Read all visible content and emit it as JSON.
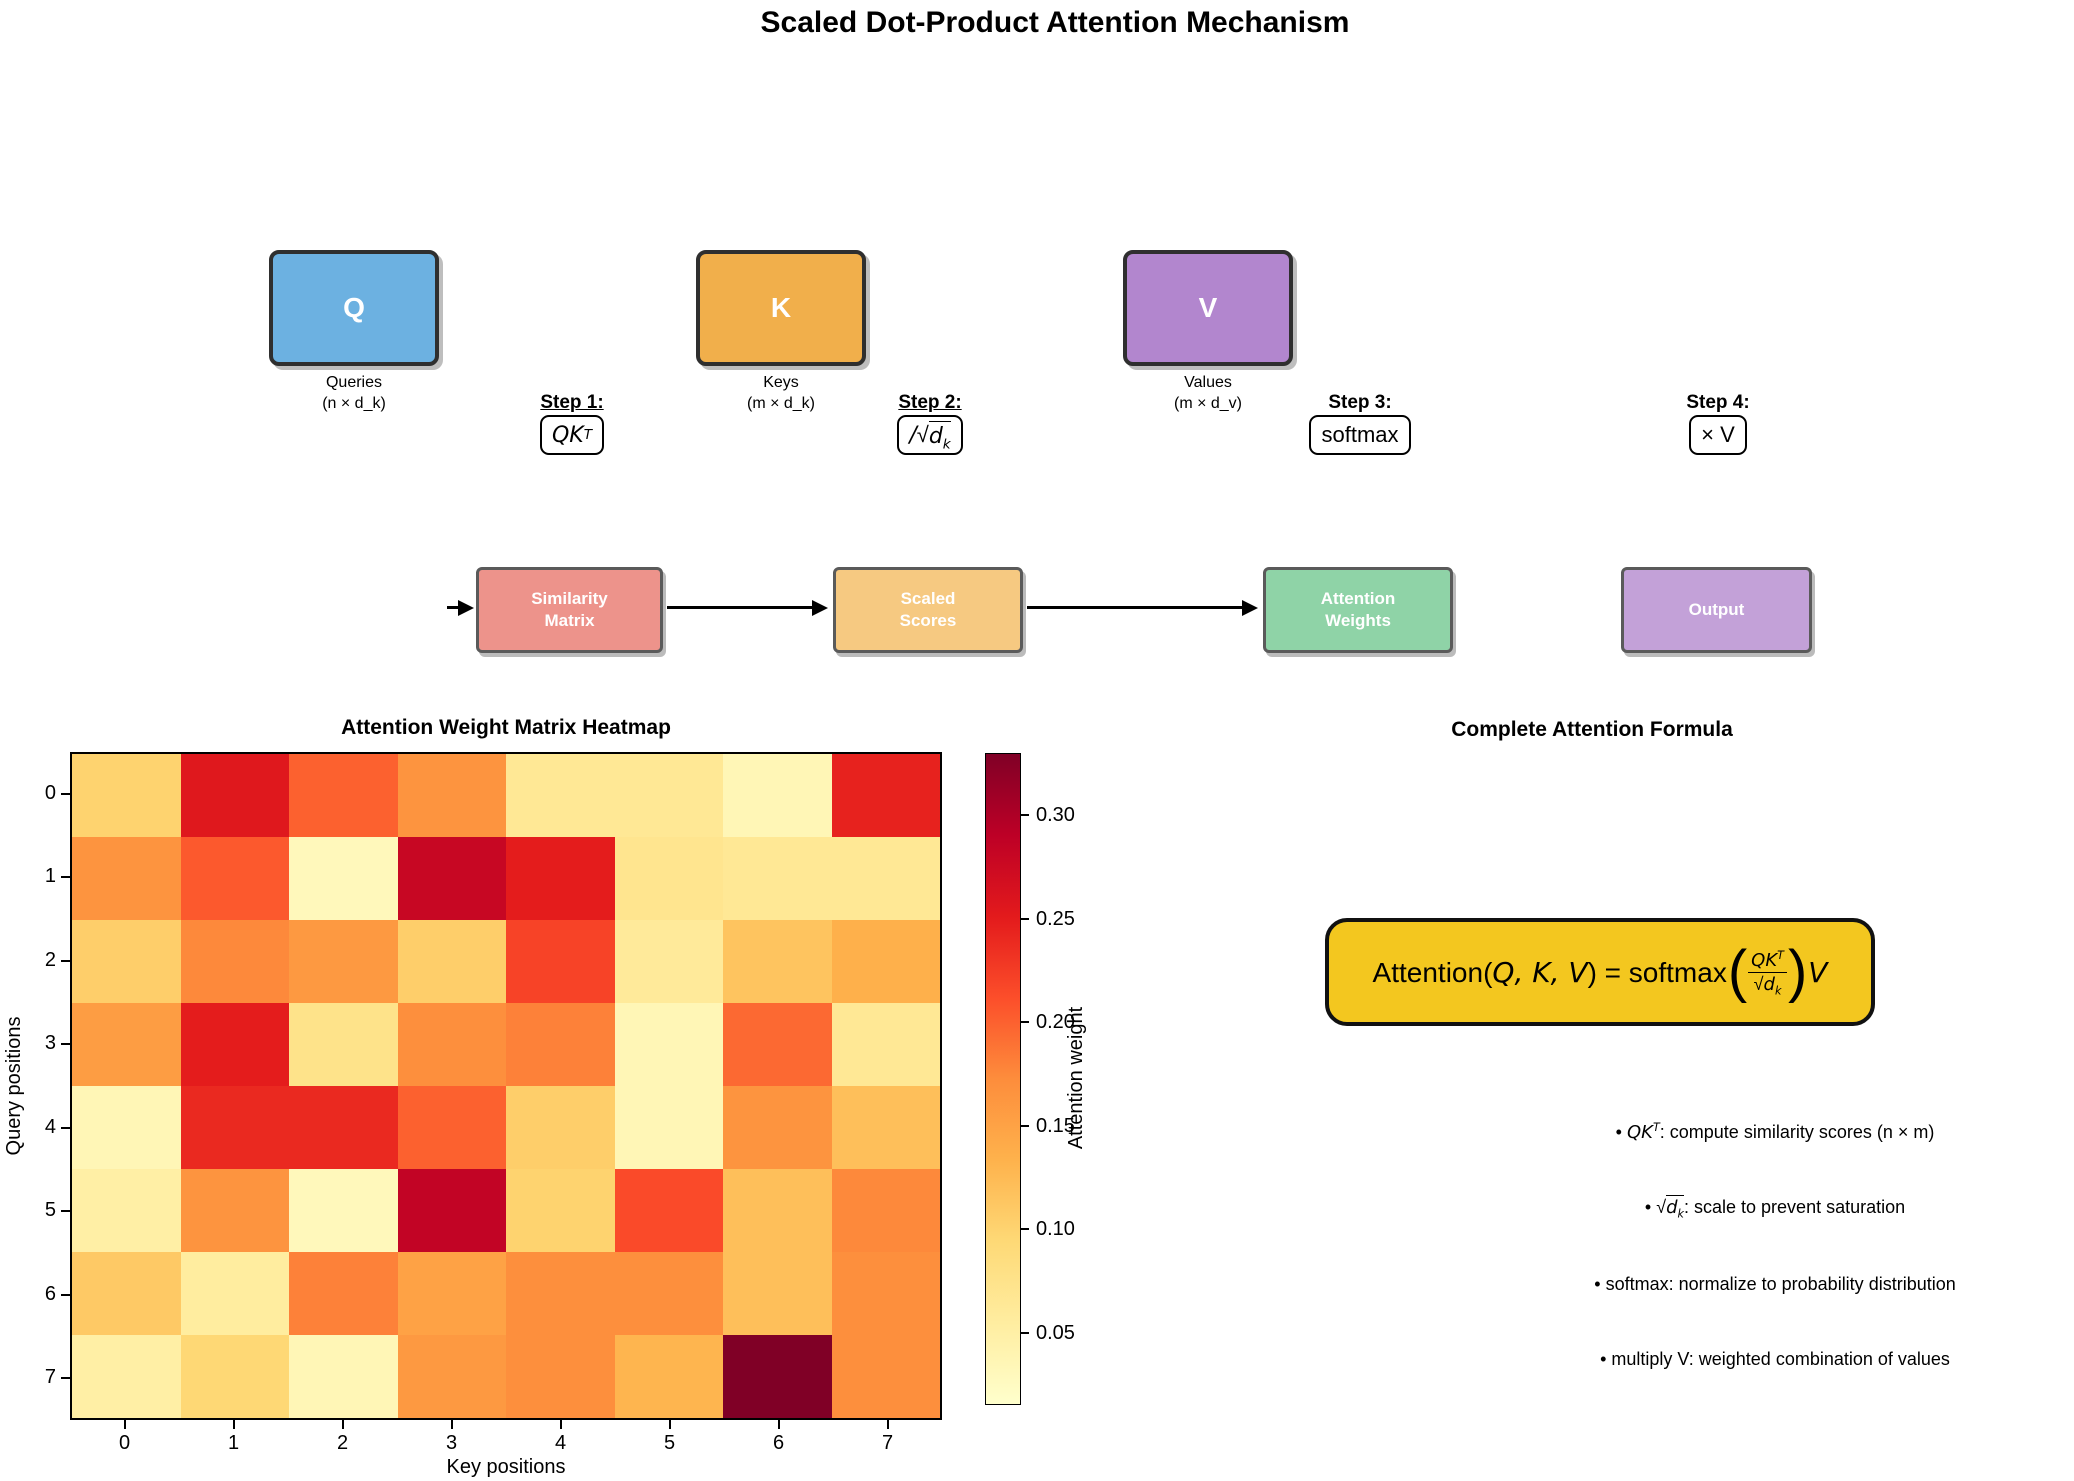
{
  "title": "Scaled Dot-Product Attention Mechanism",
  "matrices": [
    {
      "letter": "Q",
      "caption_line1": "Queries",
      "caption_line2": "(n × d_k)",
      "color": "#6cb1e1"
    },
    {
      "letter": "K",
      "caption_line1": "Keys",
      "caption_line2": "(m × d_k)",
      "color": "#f1af4b"
    },
    {
      "letter": "V",
      "caption_line1": "Values",
      "caption_line2": "(m × d_v)",
      "color": "#b286ce"
    }
  ],
  "steps": [
    {
      "label": "Step 1:",
      "math_main": "QK",
      "math_sup": "T"
    },
    {
      "label": "Step 2:",
      "prefix": "/",
      "radical": "√",
      "base": "d",
      "sub": "k"
    },
    {
      "label": "Step 3:",
      "plain": "softmax"
    },
    {
      "label": "Step 4:",
      "plain": "× V"
    }
  ],
  "flow_boxes": [
    {
      "line1": "Similarity",
      "line2": "Matrix",
      "color": "#ed938b"
    },
    {
      "line1": "Scaled",
      "line2": "Scores",
      "color": "#f6c981"
    },
    {
      "line1": "Attention",
      "line2": "Weights",
      "color": "#8fd3a7"
    },
    {
      "line1": "Output",
      "line2": "",
      "color": "#c3a1d8"
    }
  ],
  "chart_data": {
    "type": "heatmap",
    "title": "Attention Weight Matrix Heatmap",
    "xlabel": "Key positions",
    "ylabel": "Query positions",
    "x_ticks": [
      "0",
      "1",
      "2",
      "3",
      "4",
      "5",
      "6",
      "7"
    ],
    "y_ticks": [
      "0",
      "1",
      "2",
      "3",
      "4",
      "5",
      "6",
      "7"
    ],
    "colormap": "YlOrRd",
    "vmin": 0.015,
    "vmax": 0.33,
    "values": [
      [
        0.1,
        0.255,
        0.2,
        0.165,
        0.065,
        0.065,
        0.035,
        0.245
      ],
      [
        0.165,
        0.205,
        0.03,
        0.28,
        0.25,
        0.07,
        0.065,
        0.065
      ],
      [
        0.105,
        0.175,
        0.16,
        0.105,
        0.22,
        0.06,
        0.115,
        0.135
      ],
      [
        0.155,
        0.25,
        0.075,
        0.17,
        0.18,
        0.035,
        0.195,
        0.065
      ],
      [
        0.035,
        0.24,
        0.24,
        0.2,
        0.105,
        0.035,
        0.165,
        0.12
      ],
      [
        0.05,
        0.165,
        0.03,
        0.285,
        0.1,
        0.215,
        0.12,
        0.175
      ],
      [
        0.11,
        0.055,
        0.18,
        0.15,
        0.17,
        0.17,
        0.12,
        0.17
      ],
      [
        0.05,
        0.095,
        0.035,
        0.16,
        0.17,
        0.13,
        0.33,
        0.17
      ]
    ],
    "colorbar": {
      "label": "Attention weight",
      "ticks": [
        0.05,
        0.1,
        0.15,
        0.2,
        0.25,
        0.3
      ]
    },
    "legend": "none",
    "grid": false
  },
  "formula_panel": {
    "heading": "Complete Attention Formula",
    "box_color": "#f3c71f",
    "lhs1": "Attention(",
    "lhs_vars": "Q, K, V",
    "lhs2": ") = softmax",
    "frac_num_main": "QK",
    "frac_num_sup": "T",
    "frac_den_rad": "√",
    "frac_den_base": "d",
    "frac_den_sub": "k",
    "paren_open": "(",
    "paren_close": ")",
    "rhs": "V",
    "bullets": [
      {
        "marker": "•",
        "math_main": "QK",
        "math_sup": "T",
        "text": ": compute similarity scores (n × m)"
      },
      {
        "marker": "•",
        "rad": "√",
        "base": "d",
        "sub": "k",
        "text": ": scale to prevent saturation"
      },
      {
        "marker": "•",
        "text": "softmax: normalize to probability distribution"
      },
      {
        "marker": "•",
        "text": "multiply V: weighted combination of values"
      }
    ]
  }
}
